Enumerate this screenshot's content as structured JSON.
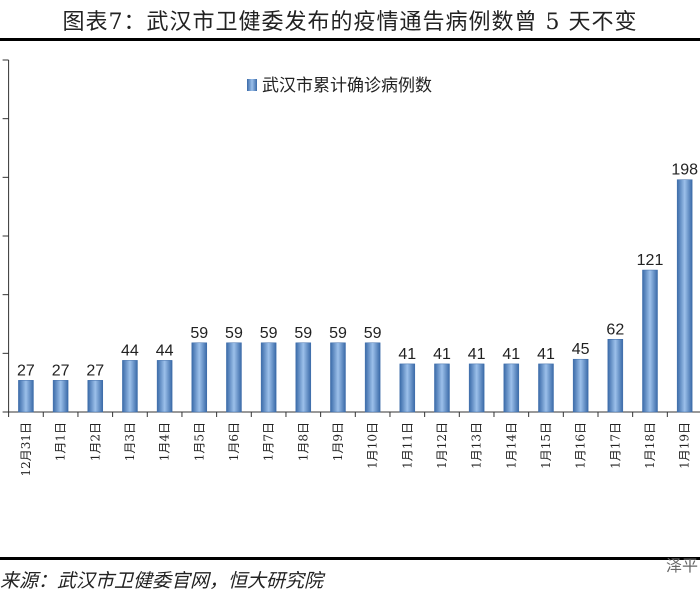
{
  "title": "图表7：武汉市卫健委发布的疫情通告病例数曾 5 天不变",
  "source": "来源：武汉市卫健委官网，恒大研究院",
  "watermark": "泽平",
  "colors": {
    "bar": "#4a7ebb",
    "bar_light": "#8fb4e3",
    "axis": "#333333"
  },
  "chart_data": {
    "type": "bar",
    "title": "",
    "legend": [
      "武汉市累计确诊病例数"
    ],
    "legend_position": "top-center",
    "categories": [
      "12月31日",
      "1月1日",
      "1月2日",
      "1月3日",
      "1月4日",
      "1月5日",
      "1月6日",
      "1月7日",
      "1月8日",
      "1月9日",
      "1月10日",
      "1月11日",
      "1月12日",
      "1月13日",
      "1月14日",
      "1月15日",
      "1月16日",
      "1月17日",
      "1月18日",
      "1月19日"
    ],
    "series": [
      {
        "name": "武汉市累计确诊病例数",
        "values": [
          27,
          27,
          27,
          44,
          44,
          59,
          59,
          59,
          59,
          59,
          59,
          41,
          41,
          41,
          41,
          41,
          45,
          62,
          121,
          198
        ]
      }
    ],
    "ylim": [
      0,
      300
    ],
    "yticks": [
      0,
      50,
      100,
      150,
      200,
      250,
      300
    ],
    "grid": false,
    "xlabel": "",
    "ylabel": ""
  }
}
